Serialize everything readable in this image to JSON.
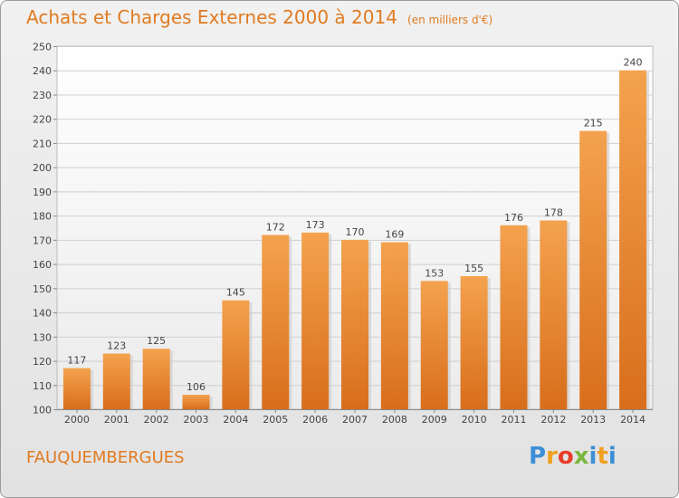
{
  "chart_data": {
    "type": "bar",
    "title": "Achats et Charges Externes 2000 à 2014",
    "subtitle": "(en milliers d'€)",
    "categories": [
      "2000",
      "2001",
      "2002",
      "2003",
      "2004",
      "2005",
      "2006",
      "2007",
      "2008",
      "2009",
      "2010",
      "2011",
      "2012",
      "2013",
      "2014"
    ],
    "values": [
      117,
      123,
      125,
      106,
      145,
      172,
      173,
      170,
      169,
      153,
      155,
      176,
      178,
      215,
      240
    ],
    "ylim": [
      100,
      250
    ],
    "yticks": [
      100,
      110,
      120,
      130,
      140,
      150,
      160,
      170,
      180,
      190,
      200,
      210,
      220,
      230,
      240,
      250
    ],
    "xlabel": "",
    "ylabel": "",
    "grid": true,
    "bar_color": "#e8842c"
  },
  "footer": {
    "commune": "FAUQUEMBERGUES",
    "logo": {
      "p": "P",
      "r": "r",
      "o": "o",
      "x": "x",
      "i": "i",
      "t": "t",
      "i2": "i"
    }
  }
}
